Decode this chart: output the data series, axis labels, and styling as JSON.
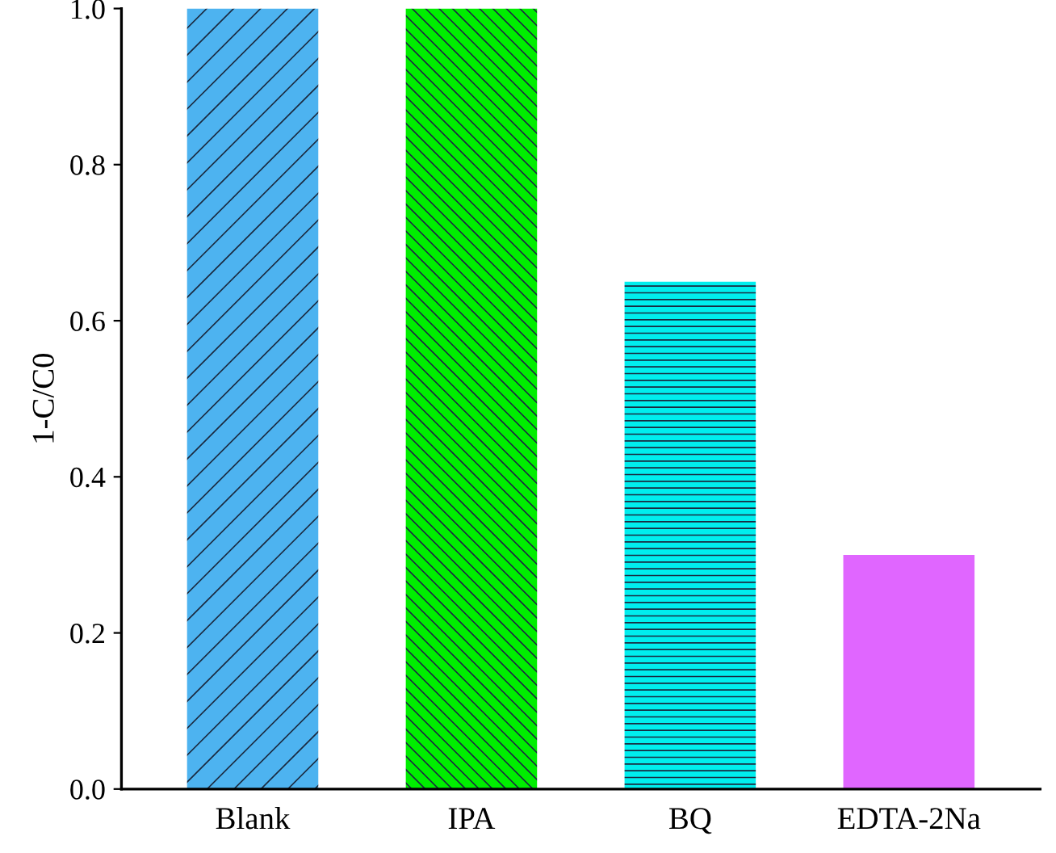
{
  "chart_data": {
    "type": "bar",
    "ylabel": "1-C/C0",
    "categories": [
      "Blank",
      "IPA",
      "BQ",
      "EDTA-2Na"
    ],
    "values": [
      1.0,
      1.0,
      0.65,
      0.3
    ],
    "colors": [
      "#4db3f0",
      "#00ee00",
      "#00eeee",
      "#e066ff"
    ],
    "ylim": [
      0,
      1.0
    ],
    "yticks": [
      {
        "value": 0,
        "label": "0.0"
      },
      {
        "value": 0.2,
        "label": "0.2"
      },
      {
        "value": 0.4,
        "label": "0.4"
      },
      {
        "value": 0.6,
        "label": "0.6"
      },
      {
        "value": 0.8,
        "label": "0.8"
      },
      {
        "value": 1.0,
        "label": "1.0"
      }
    ],
    "grid": false,
    "legend": false
  }
}
